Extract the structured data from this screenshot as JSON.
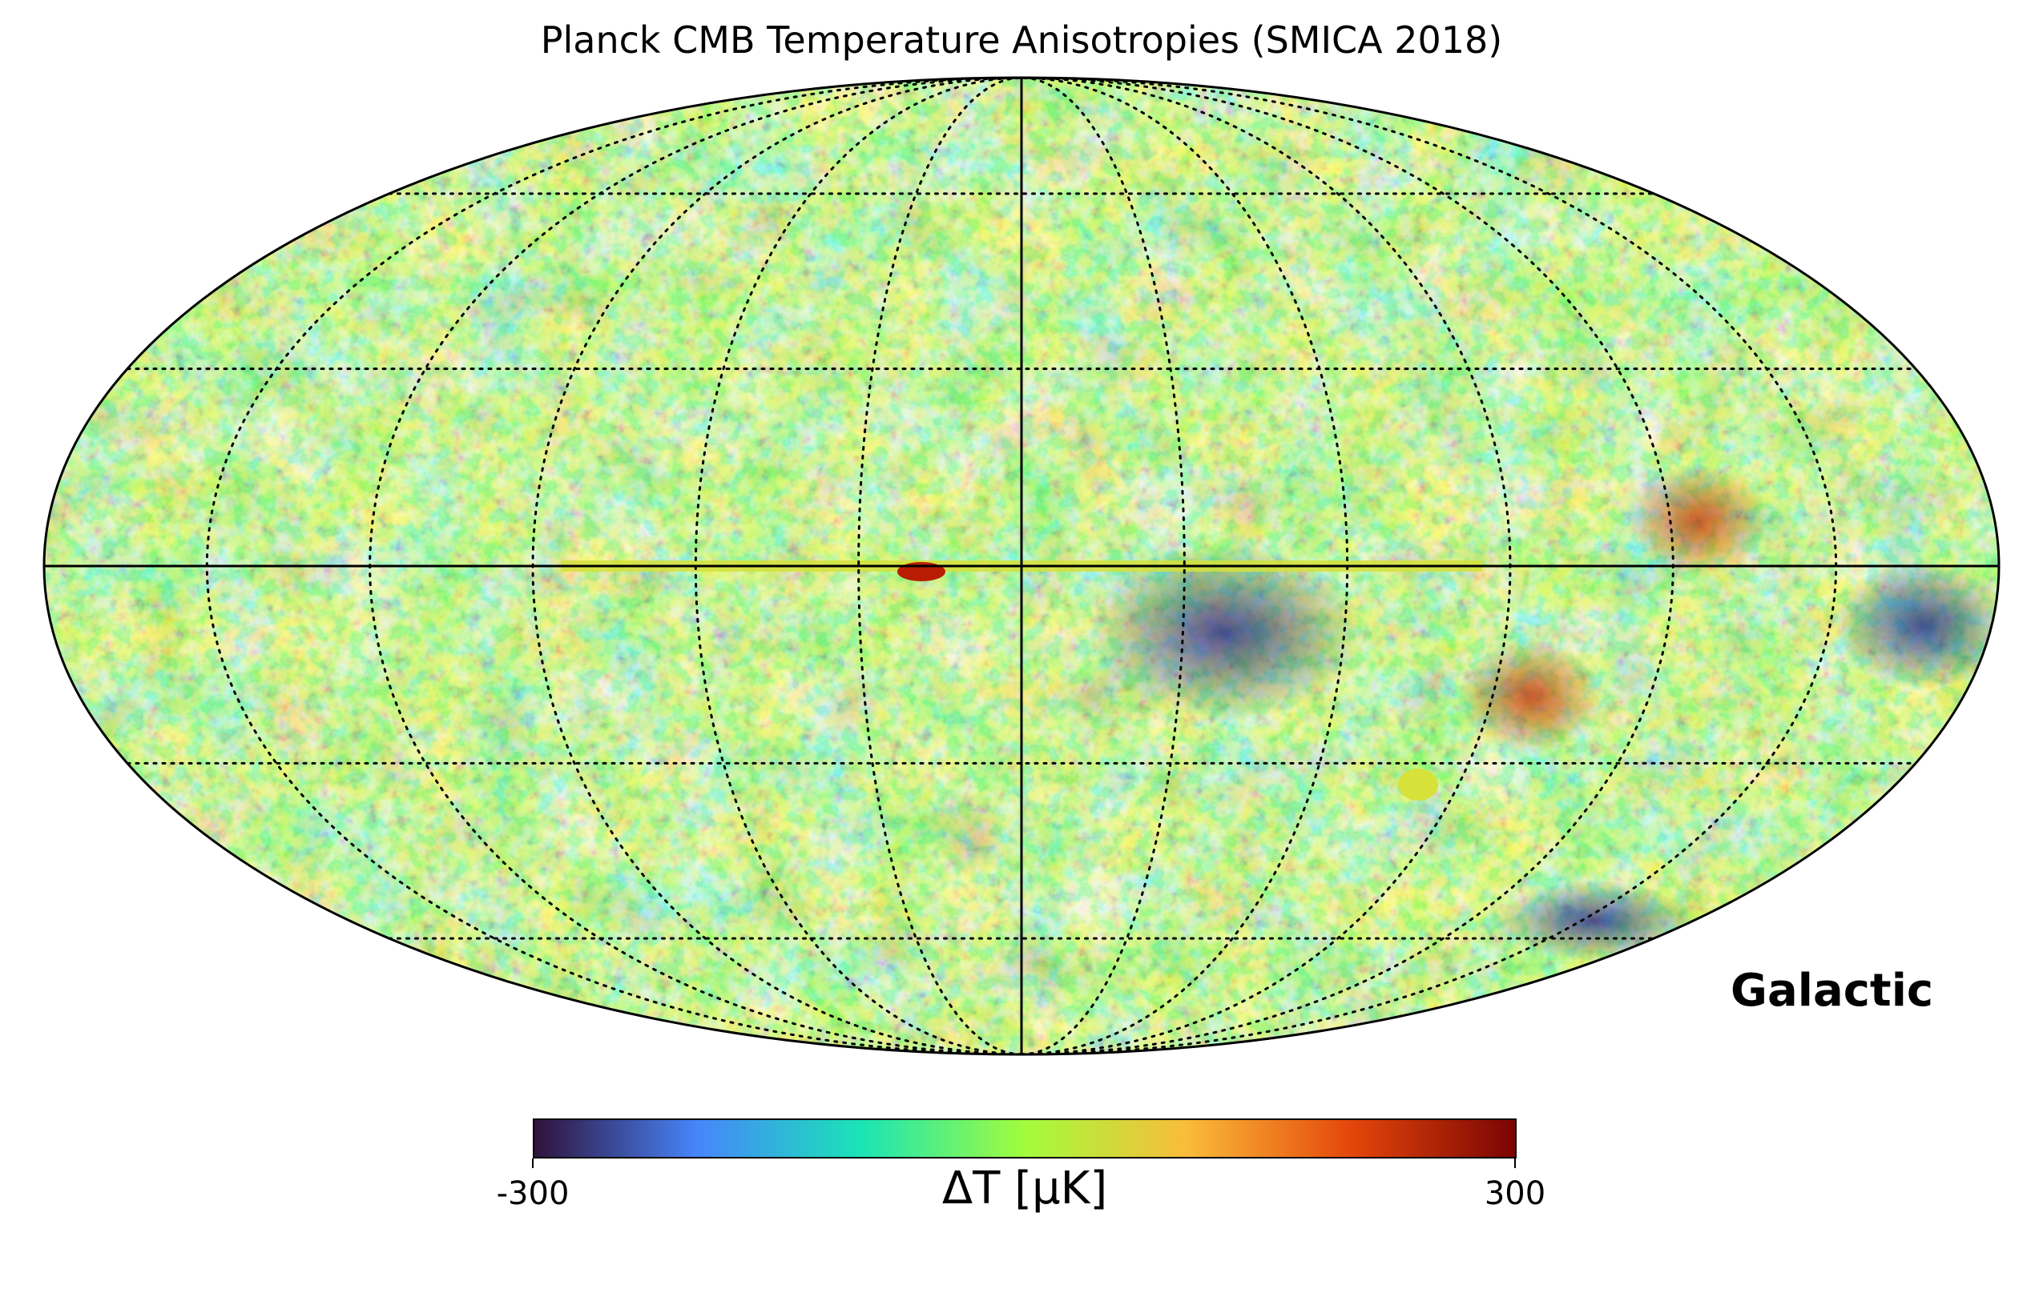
{
  "title": "Planck CMB Temperature Anisotropies (SMICA 2018)",
  "projection": "mollweide",
  "coordinate_system_label": "Galactic",
  "graticule": {
    "meridian_spacing_deg": 30,
    "parallel_spacing_deg": 30,
    "style": "dotted"
  },
  "colorbar": {
    "label": "ΔT [μK]",
    "min_label": "-300",
    "max_label": "300",
    "min": -300,
    "max": 300,
    "colormap": "turbo",
    "stops": [
      "#30123b",
      "#4686fb",
      "#1ae4b6",
      "#a2fc3c",
      "#fabb39",
      "#e4460a",
      "#7a0403"
    ]
  },
  "map_features": {
    "equator_hot_spot": "#b81d04",
    "galactic_plane_residual": "#d6e13a",
    "cold_region": "#2b2d8f"
  }
}
